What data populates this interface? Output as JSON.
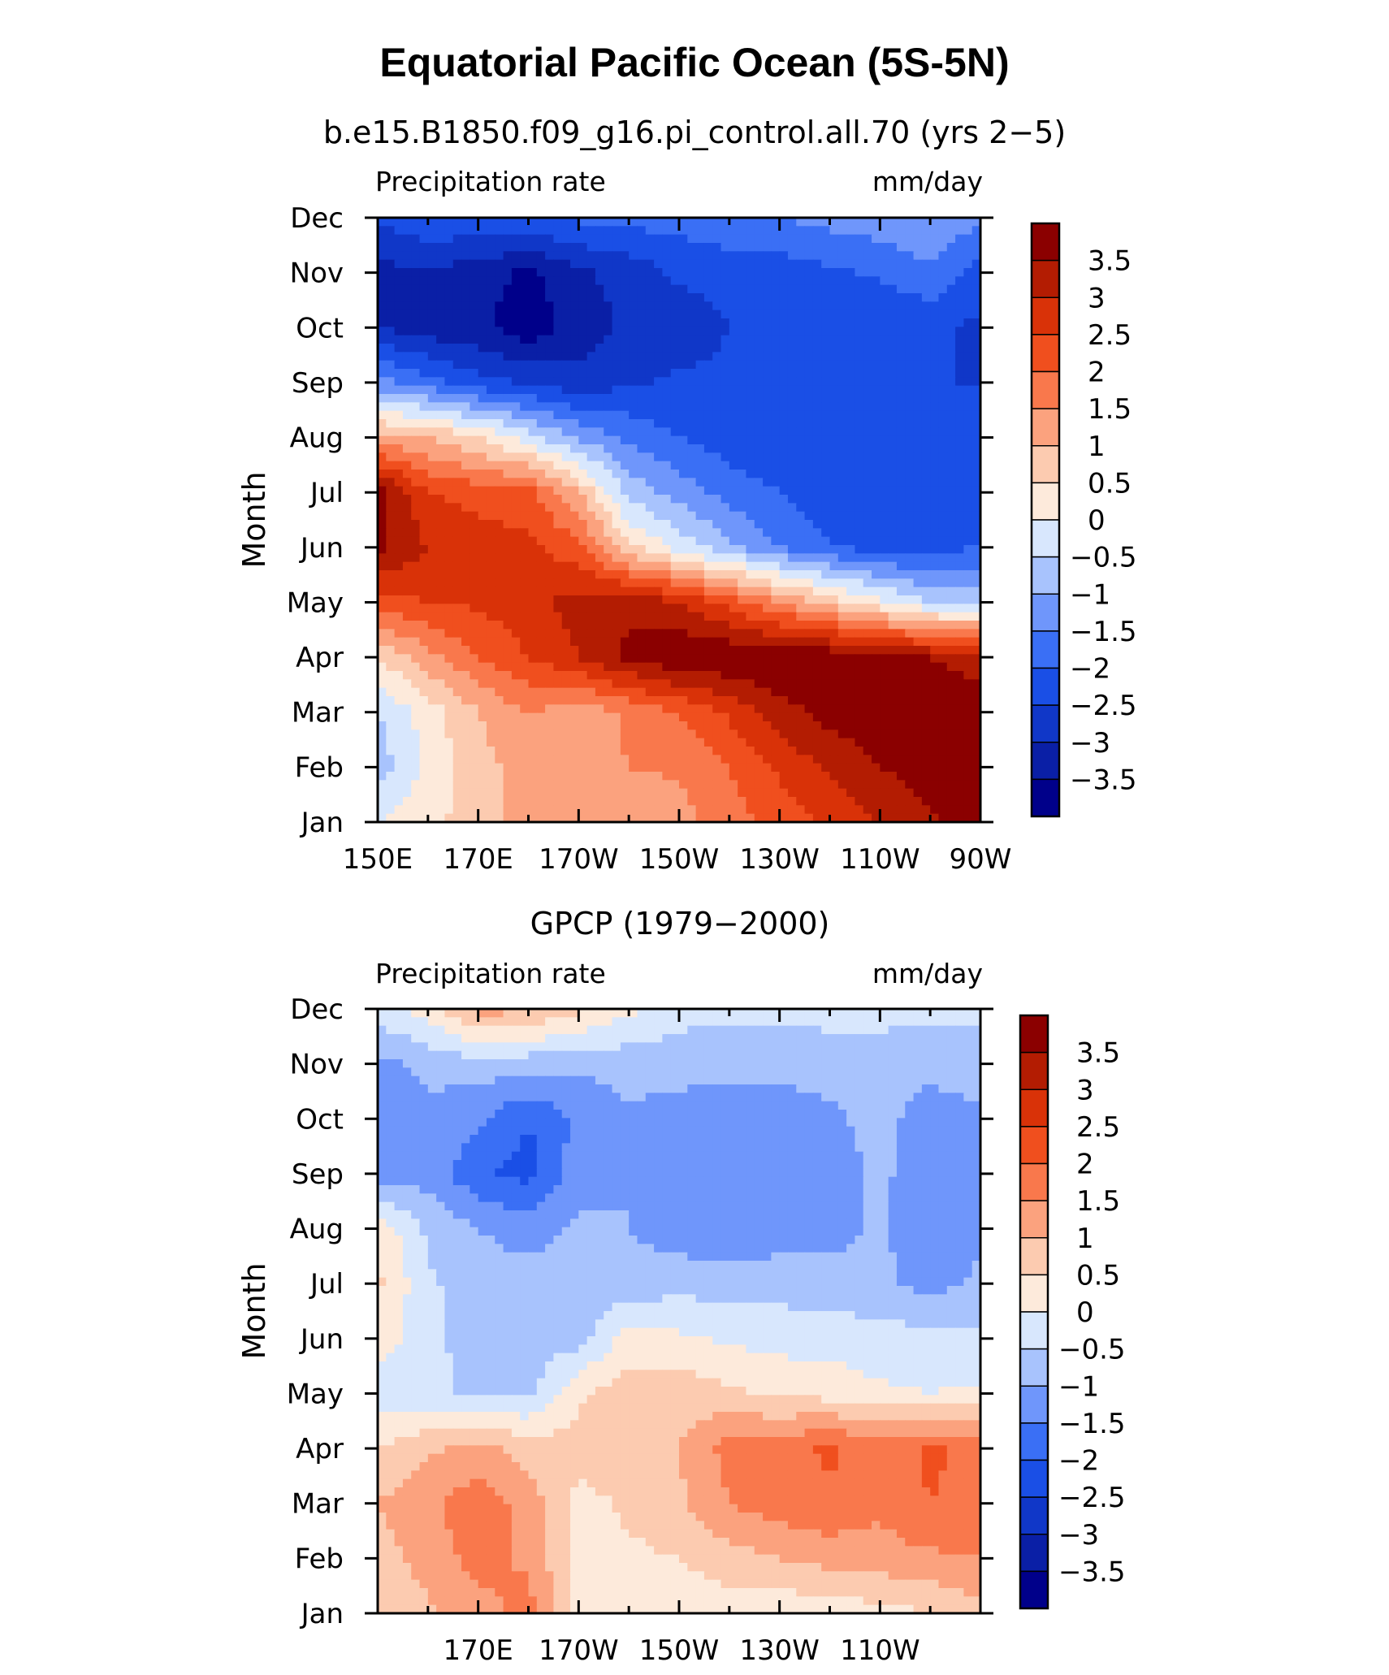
{
  "figure": {
    "title": "Equatorial Pacific Ocean (5S-5N)"
  },
  "chart_data": [
    {
      "type": "heatmap",
      "title": "b.e15.B1850.f09_g16.pi_control.all.70 (yrs 2−5)",
      "left_string": "Precipitation rate",
      "right_string": "mm/day",
      "ylabel": "Month",
      "xlim": [
        150,
        270
      ],
      "x_ticks": [
        150,
        170,
        190,
        210,
        230,
        250,
        270
      ],
      "x_tick_labels": [
        "150E",
        "170E",
        "170W",
        "150W",
        "130W",
        "110W",
        "90W"
      ],
      "y_tick_labels": [
        "Jan",
        "Feb",
        "Mar",
        "Apr",
        "May",
        "Jun",
        "Jul",
        "Aug",
        "Sep",
        "Oct",
        "Nov",
        "Dec"
      ],
      "x": [
        150,
        160,
        170,
        180,
        190,
        200,
        210,
        220,
        230,
        240,
        250,
        260,
        270
      ],
      "y": [
        "Jan",
        "Feb",
        "Mar",
        "Apr",
        "May",
        "Jun",
        "Jul",
        "Aug",
        "Sep",
        "Oct",
        "Nov",
        "Dec"
      ],
      "z": [
        [
          0.0,
          0.3,
          0.8,
          1.2,
          1.0,
          1.0,
          1.3,
          1.8,
          2.2,
          2.6,
          3.0,
          3.4,
          3.8
        ],
        [
          -0.8,
          0.2,
          0.8,
          1.2,
          1.3,
          1.5,
          1.6,
          2.0,
          2.6,
          3.1,
          3.5,
          3.8,
          4.0
        ],
        [
          -0.5,
          0.2,
          1.0,
          1.5,
          1.2,
          1.6,
          2.0,
          2.6,
          3.3,
          3.7,
          3.9,
          4.0,
          3.7
        ],
        [
          0.5,
          1.3,
          2.0,
          2.5,
          3.0,
          3.6,
          4.0,
          4.0,
          4.0,
          3.9,
          3.8,
          3.5,
          3.3
        ],
        [
          2.3,
          2.5,
          2.6,
          2.8,
          3.2,
          3.4,
          3.0,
          2.3,
          1.5,
          0.8,
          0.1,
          -0.5,
          -0.6
        ],
        [
          3.6,
          3.0,
          2.8,
          2.6,
          2.2,
          0.6,
          -0.2,
          -0.9,
          -1.5,
          -2.0,
          -2.2,
          -2.2,
          -2.0
        ],
        [
          3.8,
          2.5,
          2.3,
          2.2,
          1.0,
          -0.7,
          -1.2,
          -1.7,
          -2.0,
          -2.3,
          -2.4,
          -2.5,
          -2.4
        ],
        [
          1.2,
          1.0,
          0.5,
          -0.3,
          -1.1,
          -1.6,
          -2.0,
          -2.3,
          -2.4,
          -2.5,
          -2.5,
          -2.5,
          -2.5
        ],
        [
          -1.3,
          -1.8,
          -2.3,
          -2.6,
          -2.8,
          -2.6,
          -2.4,
          -2.4,
          -2.5,
          -2.5,
          -2.5,
          -2.5,
          -2.5
        ],
        [
          -3.0,
          -3.3,
          -3.4,
          -3.8,
          -3.3,
          -2.9,
          -2.8,
          -2.5,
          -2.5,
          -2.5,
          -2.5,
          -2.4,
          -2.6
        ],
        [
          -3.2,
          -3.0,
          -3.3,
          -3.6,
          -3.1,
          -2.8,
          -2.4,
          -2.3,
          -2.3,
          -2.1,
          -1.9,
          -1.6,
          -2.2
        ],
        [
          -2.4,
          -2.1,
          -2.1,
          -2.0,
          -1.9,
          -1.8,
          -1.8,
          -1.6,
          -1.5,
          -1.3,
          -1.2,
          -1.0,
          -1.4
        ]
      ],
      "colorbar_labels": [
        "3.5",
        "3",
        "2.5",
        "2",
        "1.5",
        "1",
        "0.5",
        "0",
        "−0.5",
        "−1",
        "−1.5",
        "−2",
        "−2.5",
        "−3",
        "−3.5"
      ]
    },
    {
      "type": "heatmap",
      "title": "GPCP (1979−2000)",
      "left_string": "Precipitation rate",
      "right_string": "mm/day",
      "ylabel": "Month",
      "xlim": [
        150,
        270
      ],
      "x_ticks": [
        170,
        190,
        210,
        230,
        250
      ],
      "x_tick_labels": [
        "170E",
        "170W",
        "150W",
        "130W",
        "110W"
      ],
      "y_tick_labels": [
        "Jan",
        "Feb",
        "Mar",
        "Apr",
        "May",
        "Jun",
        "Jul",
        "Aug",
        "Sep",
        "Oct",
        "Nov",
        "Dec"
      ],
      "x": [
        150,
        160,
        170,
        180,
        190,
        200,
        210,
        220,
        230,
        240,
        250,
        260,
        270
      ],
      "y": [
        "Jan",
        "Feb",
        "Mar",
        "Apr",
        "May",
        "Jun",
        "Jul",
        "Aug",
        "Sep",
        "Oct",
        "Nov",
        "Dec"
      ],
      "z": [
        [
          0.6,
          0.9,
          1.3,
          1.7,
          0.4,
          0.2,
          0.2,
          0.2,
          0.1,
          0.2,
          0.3,
          0.5,
          0.8
        ],
        [
          0.8,
          1.2,
          1.7,
          1.4,
          0.3,
          0.4,
          0.5,
          0.8,
          1.0,
          1.2,
          1.3,
          1.4,
          1.5
        ],
        [
          1.0,
          1.4,
          1.8,
          1.3,
          0.3,
          0.6,
          0.9,
          1.5,
          1.8,
          1.9,
          1.6,
          2.0,
          1.8
        ],
        [
          0.5,
          0.9,
          1.2,
          0.8,
          0.7,
          0.9,
          1.0,
          1.7,
          1.8,
          2.1,
          1.7,
          2.1,
          1.8
        ],
        [
          -0.3,
          -0.4,
          -0.6,
          -0.6,
          0.4,
          0.8,
          0.8,
          0.6,
          0.4,
          0.3,
          0.1,
          0.0,
          0.1
        ],
        [
          0.3,
          -0.3,
          -0.8,
          -0.8,
          -0.7,
          0.2,
          0.1,
          -0.1,
          -0.2,
          -0.2,
          -0.3,
          -0.3,
          -0.4
        ],
        [
          0.6,
          -0.4,
          -0.8,
          -0.8,
          -0.9,
          -0.8,
          -0.7,
          -0.7,
          -0.7,
          -0.8,
          -0.9,
          -1.2,
          -0.9
        ],
        [
          0.4,
          -0.6,
          -1.0,
          -1.2,
          -0.9,
          -1.0,
          -1.3,
          -1.4,
          -1.3,
          -1.2,
          -0.9,
          -1.4,
          -1.1
        ],
        [
          -1.4,
          -1.2,
          -1.9,
          -2.2,
          -1.2,
          -1.0,
          -1.4,
          -1.4,
          -1.4,
          -1.3,
          -0.9,
          -1.3,
          -1.3
        ],
        [
          -1.2,
          -1.1,
          -1.4,
          -2.0,
          -1.4,
          -1.1,
          -1.2,
          -1.4,
          -1.3,
          -1.1,
          -0.8,
          -1.3,
          -1.1
        ],
        [
          -1.1,
          -0.9,
          -0.7,
          -0.8,
          -0.9,
          -0.8,
          -0.8,
          -0.8,
          -0.8,
          -0.8,
          -0.8,
          -0.8,
          -0.7
        ],
        [
          -0.3,
          0.3,
          1.2,
          1.1,
          0.6,
          0.1,
          -0.3,
          -0.4,
          -0.4,
          -0.3,
          -0.3,
          -0.4,
          -0.4
        ]
      ],
      "colorbar_labels": [
        "3.5",
        "3",
        "2.5",
        "2",
        "1.5",
        "1",
        "0.5",
        "0",
        "−0.5",
        "−1",
        "−1.5",
        "−2",
        "−2.5",
        "−3",
        "−3.5"
      ]
    }
  ],
  "colormap": {
    "levels": [
      -3.5,
      -3,
      -2.5,
      -2,
      -1.5,
      -1,
      -0.5,
      0,
      0.5,
      1,
      1.5,
      2,
      2.5,
      3,
      3.5
    ],
    "colors": [
      "#00008a",
      "#0a1fa6",
      "#1037c8",
      "#1a4fe6",
      "#3a6ff5",
      "#6f96fb",
      "#a8c3fd",
      "#d8e7fd",
      "#fdeadb",
      "#fccbb0",
      "#fba27e",
      "#f9784c",
      "#f04f1e",
      "#d93208",
      "#b31c02",
      "#8b0000"
    ]
  }
}
